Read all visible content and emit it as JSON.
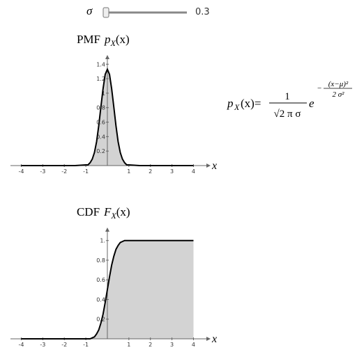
{
  "controls": {
    "label": "σ",
    "value": "0.3"
  },
  "chart_data": [
    {
      "type": "area",
      "title": "PMF",
      "title_symbol": "p",
      "title_subscript": "X",
      "title_args": "(x)",
      "x_label": "x",
      "x": [
        -4,
        -3,
        -2,
        -1.5,
        -1,
        -0.9,
        -0.8,
        -0.7,
        -0.6,
        -0.5,
        -0.4,
        -0.3,
        -0.2,
        -0.1,
        0,
        0.1,
        0.2,
        0.3,
        0.4,
        0.5,
        0.6,
        0.7,
        0.8,
        0.9,
        1,
        1.5,
        2,
        3,
        4
      ],
      "values": [
        0,
        0,
        0,
        0,
        0.01,
        0.01,
        0.04,
        0.09,
        0.18,
        0.33,
        0.55,
        0.81,
        1.06,
        1.26,
        1.33,
        1.26,
        1.06,
        0.81,
        0.55,
        0.33,
        0.18,
        0.09,
        0.04,
        0.01,
        0.01,
        0,
        0,
        0,
        0
      ],
      "color": "#d3d3d3",
      "line_color": "#000000",
      "xlim": [
        -4.5,
        4.6
      ],
      "ylim": [
        0,
        1.47
      ],
      "xticks": [
        -4,
        -3,
        -2,
        -1,
        1,
        2,
        3,
        4
      ],
      "yticks": [
        0.2,
        0.4,
        0.6,
        0.8,
        1,
        1.2,
        1.4
      ]
    },
    {
      "type": "area",
      "title": "CDF",
      "title_symbol": "F",
      "title_subscript": "X",
      "title_args": "(x)",
      "x_label": "x",
      "x": [
        -4,
        -3,
        -2,
        -1.5,
        -1,
        -0.9,
        -0.8,
        -0.7,
        -0.6,
        -0.5,
        -0.4,
        -0.3,
        -0.2,
        -0.1,
        0,
        0.1,
        0.2,
        0.3,
        0.4,
        0.5,
        0.6,
        0.7,
        0.8,
        0.9,
        1,
        1.5,
        2,
        3,
        4
      ],
      "values": [
        0,
        0,
        0,
        0,
        0,
        0,
        0,
        0.01,
        0.02,
        0.05,
        0.09,
        0.16,
        0.25,
        0.37,
        0.5,
        0.63,
        0.75,
        0.84,
        0.91,
        0.95,
        0.98,
        0.99,
        1,
        1,
        1,
        1,
        1,
        1,
        1
      ],
      "color": "#d3d3d3",
      "line_color": "#000000",
      "xlim": [
        -4.5,
        4.6
      ],
      "ylim": [
        0,
        1.09
      ],
      "xticks": [
        -4,
        -3,
        -2,
        -1,
        1,
        2,
        3,
        4
      ],
      "yticks": [
        0.2,
        0.4,
        0.6,
        0.8,
        {
          "value": 1,
          "label": "1."
        }
      ]
    }
  ],
  "formula": {
    "lhs_symbol": "p",
    "lhs_subscript": "X",
    "lhs_args": "(x)=",
    "numerator": "1",
    "denominator": "√2 π σ",
    "base": "e",
    "exponent_sign": "−",
    "exponent_numerator": "(x−μ)²",
    "exponent_denominator": "2 σ²"
  }
}
